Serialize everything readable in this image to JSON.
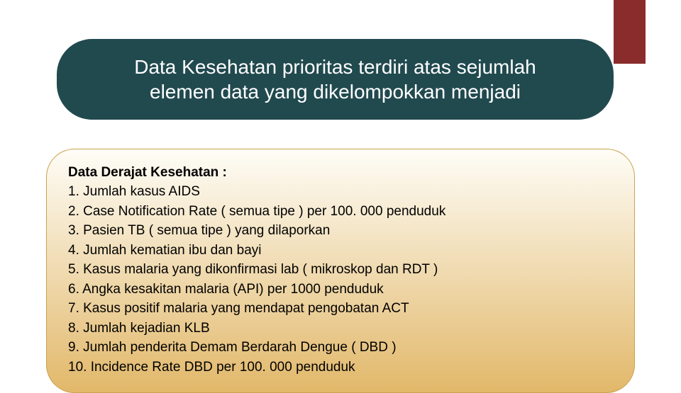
{
  "accent": {
    "color": "#8a2c2c"
  },
  "title": {
    "line1": "Data Kesehatan prioritas terdiri atas sejumlah",
    "line2": "elemen data yang dikelompokkan menjadi",
    "background_color": "#214a4f",
    "text_color": "#ffffff",
    "font_size": 28
  },
  "content": {
    "heading": "Data Derajat Kesehatan :",
    "items": [
      "1. Jumlah kasus AIDS",
      "2. Case Notification Rate ( semua tipe ) per 100. 000 penduduk",
      "3. Pasien TB ( semua tipe ) yang dilaporkan",
      "4. Jumlah kematian ibu dan bayi",
      "5. Kasus malaria yang dikonfirmasi lab ( mikroskop dan RDT )",
      "6. Angka kesakitan malaria (API) per 1000 penduduk",
      "7. Kasus positif malaria yang mendapat pengobatan ACT",
      "8. Jumlah kejadian KLB",
      "9. Jumlah penderita Demam Berdarah Dengue ( DBD )",
      "10. Incidence Rate DBD per 100. 000 penduduk"
    ],
    "gradient_top": "#fefdf7",
    "gradient_bottom": "#e2b86a",
    "border_color": "#c9a24d",
    "text_color": "#000000",
    "font_size": 19
  }
}
